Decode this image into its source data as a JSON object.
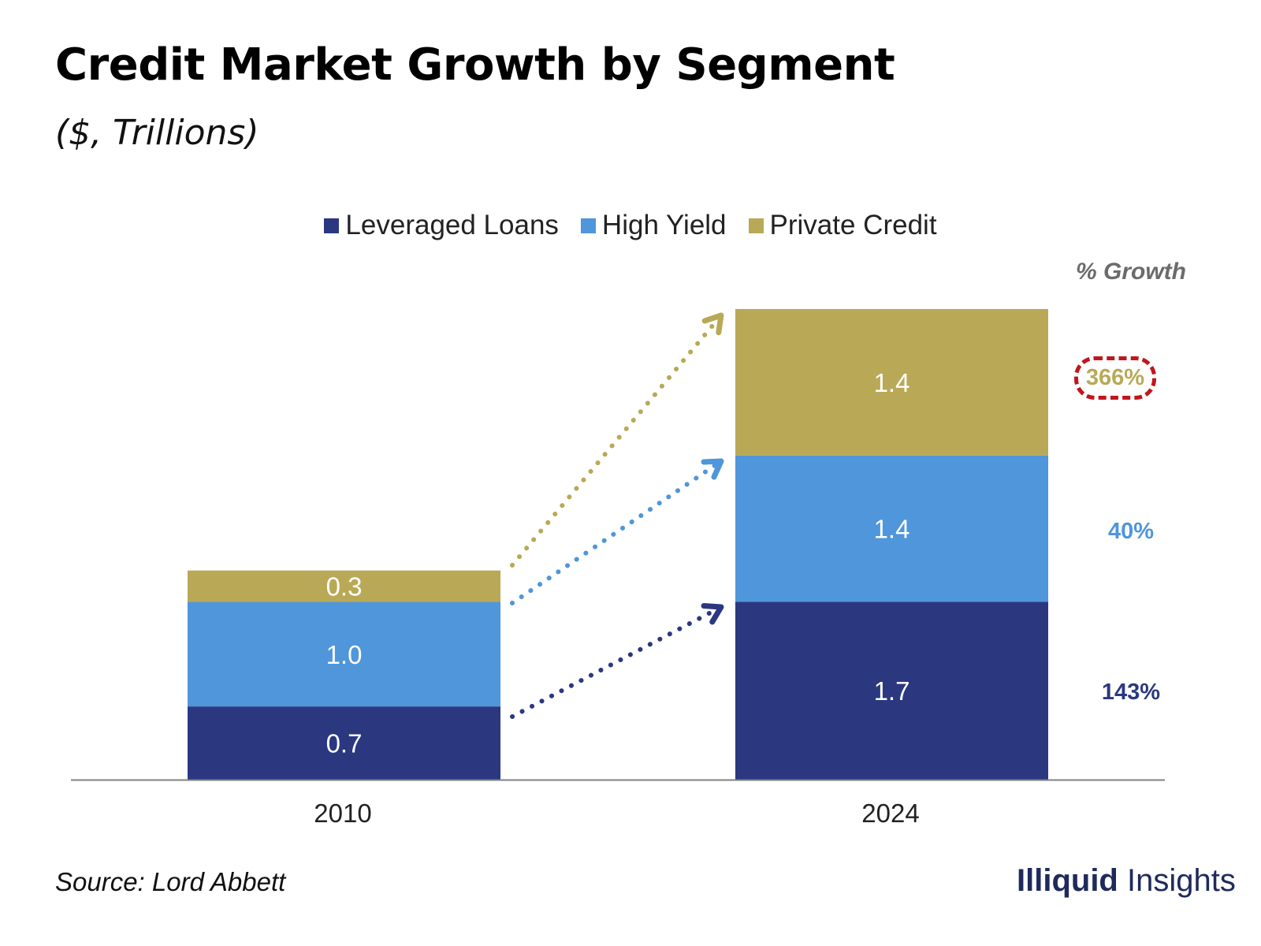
{
  "chart_data": {
    "type": "bar",
    "stacked": true,
    "title": "Credit Market Growth by Segment",
    "subtitle": "($, Trillions)",
    "categories": [
      "2010",
      "2024"
    ],
    "series": [
      {
        "name": "Leveraged Loans",
        "color": "#2b3880",
        "values": [
          0.7,
          1.7
        ],
        "labels": [
          "0.7",
          "1.7"
        ],
        "growth": "143%"
      },
      {
        "name": "High Yield",
        "color": "#4f96da",
        "values": [
          1.0,
          1.4
        ],
        "labels": [
          "1.0",
          "1.4"
        ],
        "growth": "40%"
      },
      {
        "name": "Private Credit",
        "color": "#b9a957",
        "values": [
          0.3,
          1.4
        ],
        "labels": [
          "0.3",
          "1.4"
        ],
        "growth": "366%"
      }
    ],
    "growth_header": "% Growth",
    "highlighted_growth": "Private Credit",
    "legend_position": "top-center",
    "ylim": [
      0,
      4.5
    ],
    "grid": false
  },
  "source": "Source: Lord Abbett",
  "brand": {
    "bold": "Illiquid",
    "regular": " Insights"
  }
}
